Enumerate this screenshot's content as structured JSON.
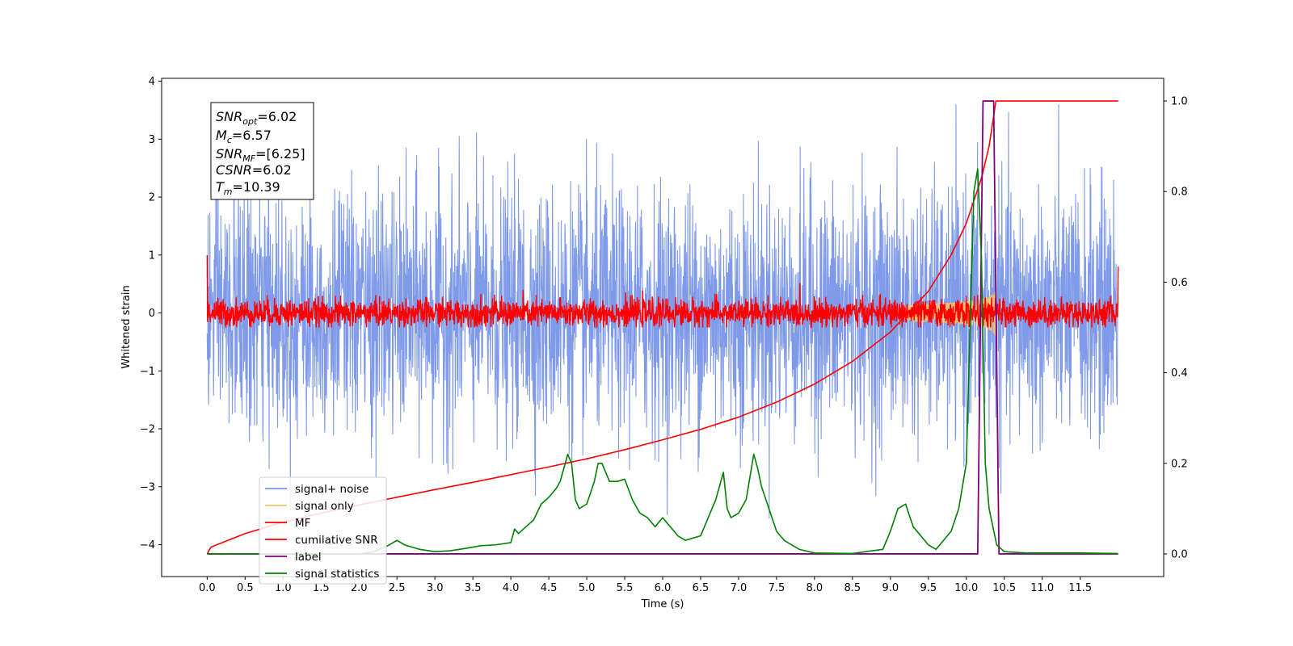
{
  "colors": {
    "signal_noise": "#7895e8",
    "signal_only": "#f5c66a",
    "mf": "#ff0000",
    "cumulative_snr": "#ff0000",
    "label": "#800080",
    "signal_statistics": "#008000"
  },
  "info_box": {
    "snr_opt": "6.02",
    "mc": "6.57",
    "snr_mf": "[6.25]",
    "csnr": "6.02",
    "tm": "10.39"
  },
  "chart_data": {
    "type": "line",
    "title": "",
    "xlabel": "Time (s)",
    "ylabel": "Whitened strain",
    "y2label": "",
    "xlim": [
      -0.6,
      12.6
    ],
    "ylim": [
      -4.55,
      4.05
    ],
    "y2lim": [
      -0.05,
      1.05
    ],
    "x_ticks": [
      0.0,
      0.5,
      1.0,
      1.5,
      2.0,
      2.5,
      3.0,
      3.5,
      4.0,
      4.5,
      5.0,
      5.5,
      6.0,
      6.5,
      7.0,
      7.5,
      8.0,
      8.5,
      9.0,
      9.5,
      10.0,
      10.5,
      11.0,
      11.5
    ],
    "x_tick_labels": [
      "0.0",
      "0.5",
      "1.0",
      "1.5",
      "2.0",
      "2.5",
      "3.0",
      "3.5",
      "4.0",
      "4.5",
      "5.0",
      "5.5",
      "6.0",
      "6.5",
      "7.0",
      "7.5",
      "8.0",
      "8.5",
      "9.0",
      "9.5",
      "10.0",
      "10.5",
      "11.0",
      "11.5"
    ],
    "y_ticks": [
      -4,
      -3,
      -2,
      -1,
      0,
      1,
      2,
      3,
      4
    ],
    "y_tick_labels": [
      "−4",
      "−3",
      "−2",
      "−1",
      "0",
      "1",
      "2",
      "3",
      "4"
    ],
    "y2_ticks": [
      0.0,
      0.2,
      0.4,
      0.6,
      0.8,
      1.0
    ],
    "y2_tick_labels": [
      "0.0",
      "0.2",
      "0.4",
      "0.6",
      "0.8",
      "1.0"
    ],
    "legend_position": "lower-left",
    "grid": false,
    "series": [
      {
        "name": "signal+ noise",
        "axis": "left",
        "kind": "noise",
        "x_range": [
          0,
          12
        ],
        "std": 1.0,
        "peak_range": [
          -3.7,
          3.6
        ],
        "description_values": "dense whitened strain noise oscillating between about -3.7 and 3.6"
      },
      {
        "name": "signal only",
        "axis": "left",
        "kind": "chirp",
        "x_range": [
          9.0,
          10.39
        ],
        "max_amplitude": 0.45
      },
      {
        "name": "MF",
        "axis": "left",
        "kind": "noise",
        "x_range": [
          0,
          12
        ],
        "std": 0.12,
        "peak_range": [
          -0.25,
          0.55
        ],
        "start_value": 1.0,
        "end_value": 0.8
      },
      {
        "name": "cumilative SNR",
        "axis": "right",
        "x": [
          0.0,
          0.05,
          0.5,
          1.0,
          1.5,
          2.0,
          2.5,
          3.0,
          3.5,
          4.0,
          4.5,
          5.0,
          5.5,
          6.0,
          6.5,
          7.0,
          7.5,
          8.0,
          8.5,
          9.0,
          9.5,
          9.8,
          10.0,
          10.2,
          10.3,
          10.39,
          12.0
        ],
        "y": [
          0.0,
          0.015,
          0.045,
          0.07,
          0.09,
          0.108,
          0.125,
          0.142,
          0.158,
          0.175,
          0.192,
          0.21,
          0.23,
          0.252,
          0.275,
          0.302,
          0.335,
          0.375,
          0.425,
          0.49,
          0.58,
          0.66,
          0.73,
          0.83,
          0.9,
          1.0,
          1.0
        ]
      },
      {
        "name": "label",
        "axis": "right",
        "x": [
          0.0,
          10.15,
          10.22,
          10.36,
          10.43,
          12.0
        ],
        "y": [
          0.0,
          0.0,
          1.0,
          1.0,
          0.0,
          0.0
        ]
      },
      {
        "name": "signal statistics",
        "axis": "right",
        "x": [
          0.0,
          0.5,
          1.0,
          1.5,
          2.0,
          2.2,
          2.4,
          2.5,
          2.6,
          2.8,
          3.0,
          3.2,
          3.4,
          3.5,
          3.6,
          3.8,
          4.0,
          4.05,
          4.1,
          4.2,
          4.3,
          4.4,
          4.5,
          4.6,
          4.65,
          4.7,
          4.75,
          4.8,
          4.85,
          4.9,
          5.0,
          5.1,
          5.15,
          5.2,
          5.3,
          5.4,
          5.5,
          5.6,
          5.7,
          5.8,
          5.9,
          6.0,
          6.1,
          6.2,
          6.3,
          6.5,
          6.7,
          6.8,
          6.85,
          6.9,
          7.0,
          7.1,
          7.2,
          7.25,
          7.3,
          7.4,
          7.5,
          7.6,
          7.8,
          8.0,
          8.5,
          8.9,
          9.0,
          9.1,
          9.2,
          9.3,
          9.5,
          9.6,
          9.8,
          9.9,
          10.0,
          10.05,
          10.1,
          10.15,
          10.2,
          10.25,
          10.3,
          10.35,
          10.4,
          10.5,
          10.7,
          10.8,
          11.0,
          11.5,
          12.0
        ],
        "y": [
          0.0,
          0.0,
          0.0,
          0.0,
          0.0,
          0.005,
          0.02,
          0.03,
          0.02,
          0.01,
          0.005,
          0.007,
          0.012,
          0.015,
          0.018,
          0.02,
          0.025,
          0.055,
          0.045,
          0.06,
          0.075,
          0.11,
          0.125,
          0.145,
          0.16,
          0.19,
          0.22,
          0.2,
          0.12,
          0.1,
          0.11,
          0.16,
          0.2,
          0.2,
          0.16,
          0.16,
          0.165,
          0.12,
          0.09,
          0.08,
          0.06,
          0.08,
          0.06,
          0.04,
          0.03,
          0.04,
          0.12,
          0.18,
          0.1,
          0.08,
          0.09,
          0.12,
          0.22,
          0.19,
          0.15,
          0.1,
          0.05,
          0.03,
          0.01,
          0.002,
          0.001,
          0.01,
          0.05,
          0.1,
          0.11,
          0.06,
          0.02,
          0.01,
          0.05,
          0.1,
          0.2,
          0.5,
          0.8,
          0.85,
          0.65,
          0.2,
          0.1,
          0.06,
          0.02,
          0.005,
          0.003,
          0.002,
          0.002,
          0.002,
          0.001
        ]
      }
    ]
  },
  "legend": [
    {
      "label": "signal+ noise",
      "color": "#7895e8"
    },
    {
      "label": "signal only",
      "color": "#f5c66a"
    },
    {
      "label": "MF",
      "color": "#ff0000"
    },
    {
      "label": "cumilative SNR",
      "color": "#ff0000"
    },
    {
      "label": "label",
      "color": "#800080"
    },
    {
      "label": "signal statistics",
      "color": "#008000"
    }
  ]
}
